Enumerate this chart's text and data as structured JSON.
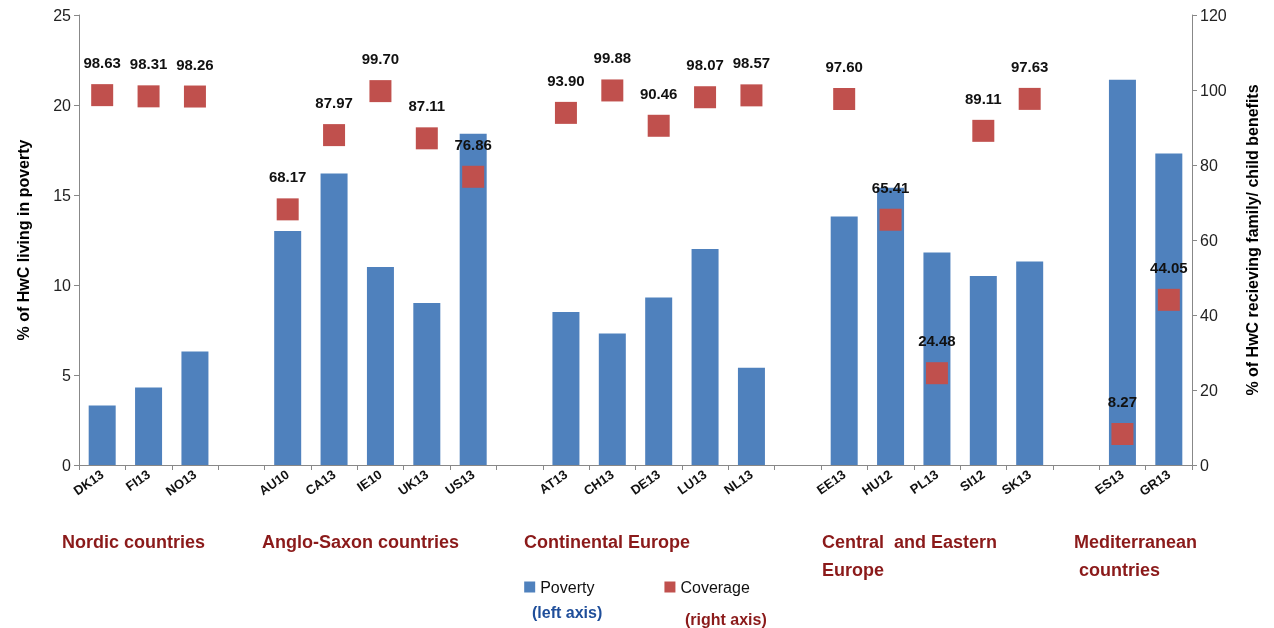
{
  "chart_data": {
    "type": "bar",
    "categories": [
      "DK13",
      "FI13",
      "NO13",
      null,
      "AU10",
      "CA13",
      "IE10",
      "UK13",
      "US13",
      null,
      "AT13",
      "CH13",
      "DE13",
      "LU13",
      "NL13",
      null,
      "EE13",
      "HU12",
      "PL13",
      "SI12",
      "SK13",
      null,
      "ES13",
      "GR13"
    ],
    "series": [
      {
        "name": "Poverty",
        "type": "bar",
        "color": "#4f81bd",
        "values": [
          3.3,
          4.3,
          6.3,
          null,
          13.0,
          16.2,
          11.0,
          9.0,
          18.4,
          null,
          8.5,
          7.3,
          9.3,
          12.0,
          5.4,
          null,
          13.8,
          15.4,
          11.8,
          10.5,
          11.3,
          null,
          21.4,
          17.3
        ]
      },
      {
        "name": "Coverage",
        "type": "scatter",
        "axis": "y2",
        "color": "#c0504d",
        "marker": "square",
        "values": [
          98.63,
          98.31,
          98.26,
          null,
          68.17,
          87.97,
          99.7,
          87.11,
          76.86,
          null,
          93.9,
          99.88,
          90.46,
          98.07,
          98.57,
          null,
          97.6,
          65.41,
          24.48,
          89.11,
          97.63,
          null,
          8.27,
          44.05
        ],
        "value_labels": [
          "98.63",
          "98.31",
          "98.26",
          null,
          "68.17",
          "87.97",
          "99.70",
          "87.11",
          "76.86",
          null,
          "93.90",
          "99.88",
          "90.46",
          "98.07",
          "98.57",
          null,
          "97.60",
          "65.41",
          "24.48",
          "89.11",
          "97.63",
          null,
          "8.27",
          "44.05"
        ]
      }
    ],
    "ylabel": "% of HwC living in poverty",
    "y2label": "% of HwC recieving family/ child benefits",
    "ylim": [
      0,
      25
    ],
    "yticks": [
      0,
      5,
      10,
      15,
      20,
      25
    ],
    "y2lim": [
      0,
      120
    ],
    "y2ticks": [
      0,
      20,
      40,
      60,
      80,
      100,
      120
    ],
    "grid": false,
    "legend": "bottom",
    "annotations": [
      "Nordic countries",
      "Anglo-Saxon countries",
      "Continental Europe",
      "Central  and Eastern\nEurope",
      "Mediterranean\n countries",
      "(left axis)",
      "(right axis)"
    ]
  }
}
